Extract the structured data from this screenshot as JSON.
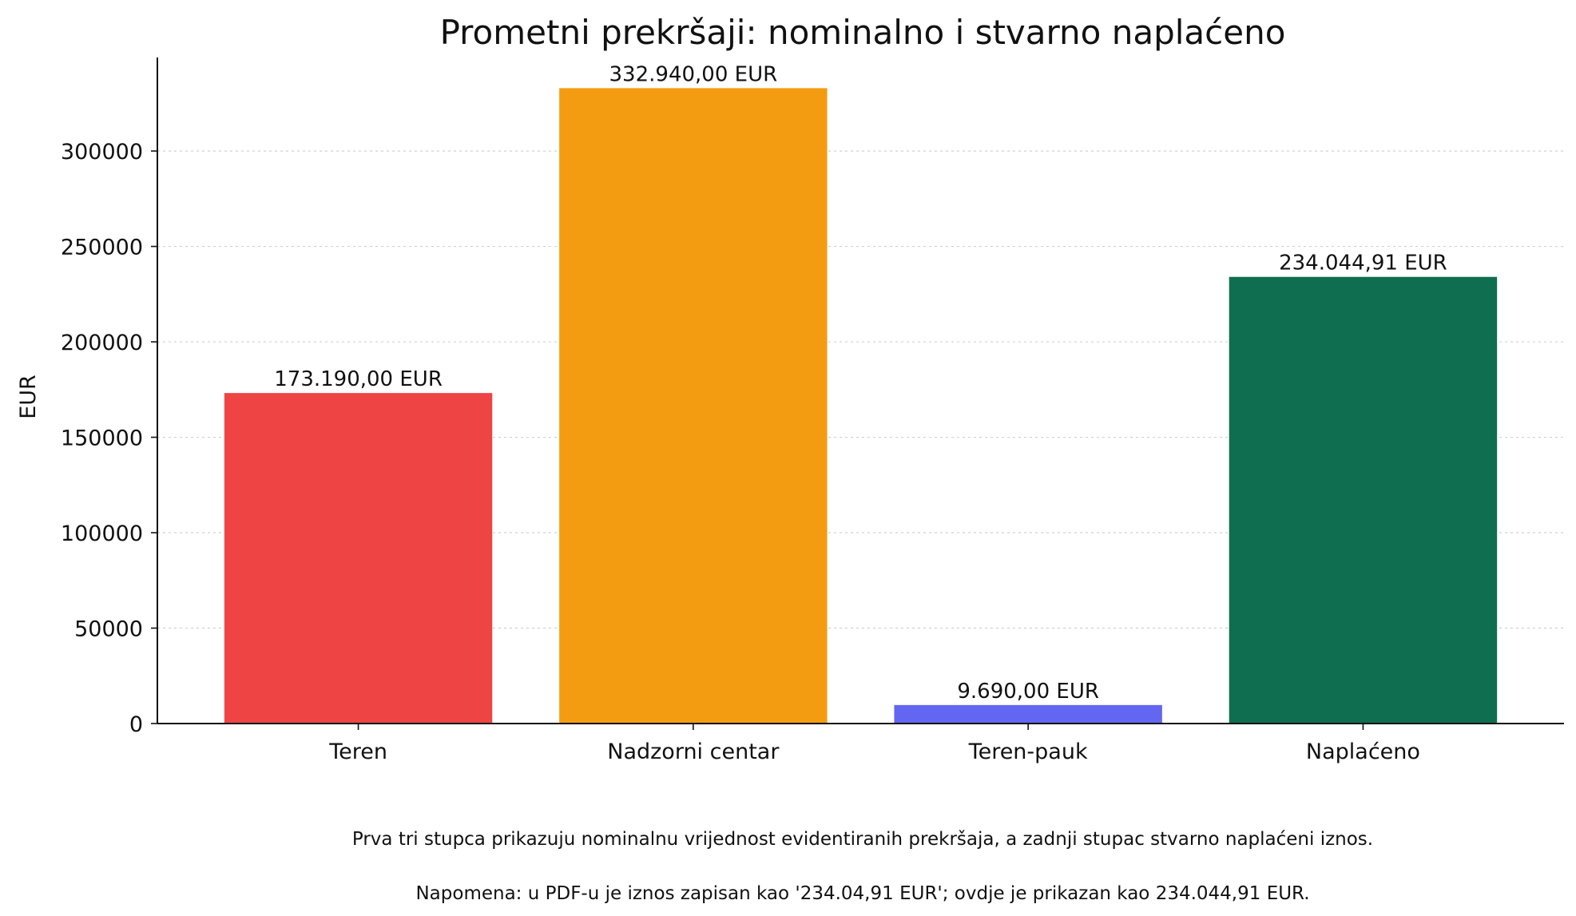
{
  "chart_data": {
    "type": "bar",
    "title": "Prometni prekršaji: nominalno i stvarno naplaćeno",
    "xlabel": "",
    "ylabel": "EUR",
    "categories": [
      "Teren",
      "Nadzorni centar",
      "Teren-pauk",
      "Naplaćeno"
    ],
    "values": [
      173190.0,
      332940.0,
      9690.0,
      234044.91
    ],
    "value_labels": [
      "173.190,00 EUR",
      "332.940,00 EUR",
      "9.690,00 EUR",
      "234.044,91 EUR"
    ],
    "colors": [
      "#ef4444",
      "#f39c12",
      "#6366f1",
      "#0f6e4f"
    ],
    "ylim": [
      0,
      349000
    ],
    "yticks": [
      0,
      50000,
      100000,
      150000,
      200000,
      250000,
      300000
    ],
    "ytick_labels": [
      "0",
      "50000",
      "100000",
      "150000",
      "200000",
      "250000",
      "300000"
    ],
    "grid": "horizontal-dotted"
  },
  "notes": {
    "line1": "Prva tri stupca prikazuju nominalnu vrijednost evidentiranih prekršaja, a zadnji stupac stvarno naplaćeni iznos.",
    "line2": "Napomena: u PDF-u je iznos zapisan kao '234.04,91 EUR'; ovdje je prikazan kao 234.044,91 EUR."
  }
}
